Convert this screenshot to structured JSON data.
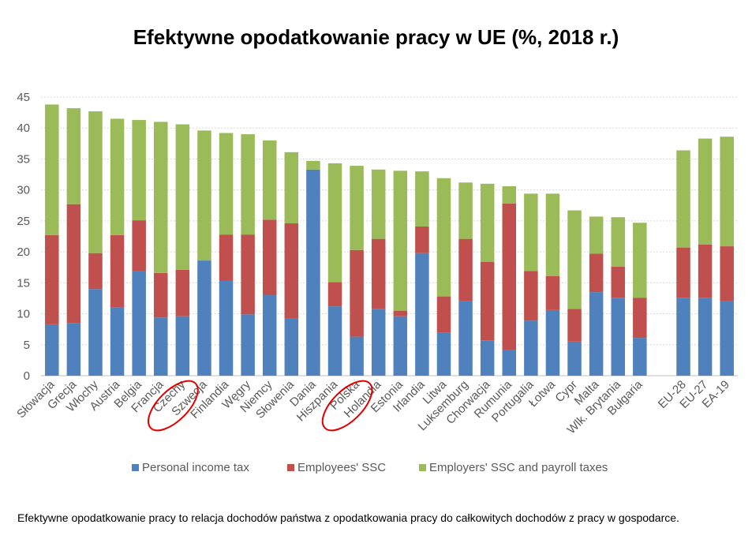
{
  "chart_data": {
    "type": "bar",
    "stacked": true,
    "title": "Efektywne opodatkowanie pracy w UE (%, 2018 r.)",
    "xlabel": "",
    "ylabel": "",
    "ylim": [
      0,
      45
    ],
    "yticks": [
      0,
      5,
      10,
      15,
      20,
      25,
      30,
      35,
      40,
      45
    ],
    "grid": true,
    "legend_position": "bottom",
    "categories": [
      "Słowacja",
      "Grecja",
      "Włochy",
      "Austria",
      "Belgia",
      "Francja",
      "Czechy",
      "Szwecja",
      "Finlandia",
      "Węgry",
      "Niemcy",
      "Słowenia",
      "Dania",
      "Hiszpania",
      "Polska",
      "Holandia",
      "Estonia",
      "Irlandia",
      "Litwa",
      "Luksemburg",
      "Chorwacja",
      "Rumunia",
      "Portugalia",
      "Łotwa",
      "Cypr",
      "Malta",
      "Wlk. Brytania",
      "Bułgaria",
      "",
      "EU-28",
      "EU-27",
      "EA-19"
    ],
    "series": [
      {
        "name": "Personal income tax",
        "color": "#4f81bd",
        "values": [
          8.3,
          8.5,
          14.0,
          11.0,
          16.9,
          9.4,
          9.6,
          18.6,
          15.3,
          9.9,
          13.0,
          9.3,
          33.3,
          11.2,
          6.3,
          10.8,
          9.6,
          19.8,
          7.0,
          12.1,
          5.7,
          4.2,
          8.9,
          10.6,
          5.5,
          13.5,
          12.6,
          6.1,
          null,
          12.6,
          12.6,
          12.0
        ]
      },
      {
        "name": "Employees' SSC",
        "color": "#c0504d",
        "values": [
          14.4,
          19.2,
          5.8,
          11.7,
          8.2,
          7.2,
          7.5,
          0.0,
          7.5,
          12.9,
          12.2,
          15.3,
          0.0,
          3.9,
          14.0,
          11.3,
          0.9,
          4.3,
          5.8,
          10.0,
          12.7,
          23.6,
          8.0,
          5.5,
          5.3,
          6.2,
          5.0,
          6.5,
          null,
          8.1,
          8.6,
          8.9
        ]
      },
      {
        "name": "Employers' SSC and payroll taxes",
        "color": "#9bbb59",
        "values": [
          21.1,
          15.5,
          22.9,
          18.8,
          16.2,
          24.4,
          23.5,
          21.0,
          16.4,
          16.2,
          12.8,
          11.5,
          1.4,
          19.2,
          13.6,
          11.2,
          22.6,
          8.9,
          19.1,
          9.1,
          12.6,
          2.8,
          12.5,
          13.3,
          15.9,
          6.0,
          8.0,
          12.1,
          null,
          15.7,
          17.1,
          17.7
        ]
      }
    ],
    "annotations": [
      {
        "type": "ellipse-highlight",
        "category": "Czechy",
        "color": "#e00000"
      },
      {
        "type": "ellipse-highlight",
        "category": "Polska",
        "color": "#e00000"
      }
    ]
  },
  "footnote": "Efektywne opodatkowanie pracy to relacja dochodów państwa z opodatkowania pracy do całkowitych dochodów z pracy w gospodarce."
}
